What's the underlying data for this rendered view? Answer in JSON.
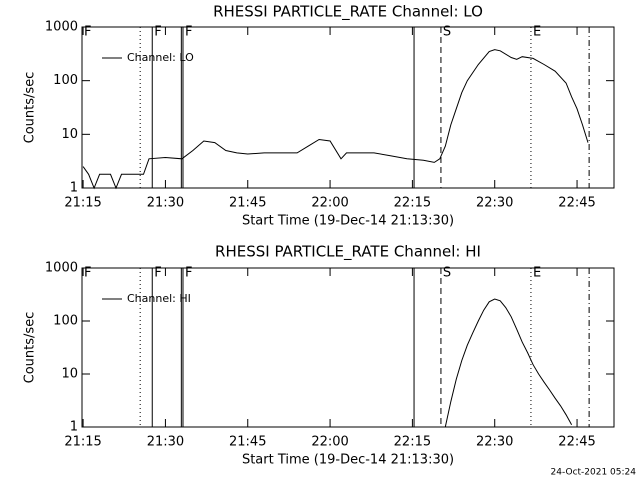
{
  "chart_data": [
    {
      "type": "line",
      "title": "RHESSI PARTICLE_RATE Channel: LO",
      "xlabel": "Start Time (19-Dec-14 21:13:30)",
      "ylabel": "Counts/sec",
      "x": [
        "21:15:00",
        "21:16:00",
        "21:17:00",
        "21:18:00",
        "21:20:00",
        "21:21:00",
        "21:22:00",
        "21:24:00",
        "21:26:00",
        "21:27:00",
        "21:30:00",
        "21:33:00",
        "21:35:00",
        "21:37:00",
        "21:39:00",
        "21:41:00",
        "21:43:00",
        "21:45:00",
        "21:48:00",
        "21:51:00",
        "21:54:00",
        "21:56:00",
        "21:58:00",
        "22:00:00",
        "22:02:00",
        "22:03:00",
        "22:05:00",
        "22:08:00",
        "22:11:00",
        "22:14:00",
        "22:17:00",
        "22:19:00",
        "22:20:00",
        "22:21:00",
        "22:22:00",
        "22:23:00",
        "22:24:00",
        "22:25:00",
        "22:27:00",
        "22:29:00",
        "22:30:00",
        "22:31:00",
        "22:33:00",
        "22:34:00",
        "22:35:00",
        "22:37:00",
        "22:39:00",
        "22:41:00",
        "22:43:00",
        "22:44:00",
        "22:45:00",
        "22:46:00",
        "22:47:00"
      ],
      "series": [
        {
          "name": "Channel: LO",
          "color": "#000000",
          "values": [
            2.5,
            1.8,
            1,
            1.8,
            1.8,
            1,
            1.8,
            1.8,
            1.8,
            3.5,
            3.7,
            3.5,
            5,
            7.5,
            7,
            5,
            4.5,
            4.3,
            4.5,
            4.5,
            4.5,
            6,
            8,
            7.5,
            3.5,
            4.5,
            4.5,
            4.5,
            4,
            3.5,
            3.3,
            3,
            3.5,
            6,
            15,
            30,
            60,
            100,
            200,
            350,
            380,
            360,
            270,
            250,
            280,
            260,
            200,
            150,
            90,
            50,
            30,
            15,
            7
          ]
        }
      ],
      "xlim": [
        "21:14:48",
        "22:51:44"
      ],
      "xticks": [
        "21:15",
        "21:30",
        "21:45",
        "22:00",
        "22:15",
        "22:30",
        "22:45"
      ],
      "ylim": [
        1,
        1000
      ],
      "yticks": [
        1,
        10,
        100,
        1000
      ],
      "log_y": true,
      "legend": "upper left",
      "flags": [
        {
          "x": "21:14:48",
          "style": "solid",
          "label": "F"
        },
        {
          "x": "21:25:24",
          "style": "dotted"
        },
        {
          "x": "21:27:36",
          "style": "solid",
          "label": "F"
        },
        {
          "x": "21:32:54",
          "style": "solid"
        },
        {
          "x": "21:33:12",
          "style": "solid",
          "label": "F"
        },
        {
          "x": "22:15:18",
          "style": "solid"
        },
        {
          "x": "22:20:12",
          "style": "dashed",
          "label": "S"
        },
        {
          "x": "22:36:36",
          "style": "dotted",
          "label": "E"
        },
        {
          "x": "22:47:12",
          "style": "dashdot"
        }
      ]
    },
    {
      "type": "line",
      "title": "RHESSI PARTICLE_RATE Channel: HI",
      "xlabel": "Start Time (19-Dec-14 21:13:30)",
      "ylabel": "Counts/sec",
      "x": [
        "22:21:00",
        "22:22:00",
        "22:23:00",
        "22:24:00",
        "22:25:00",
        "22:26:00",
        "22:27:00",
        "22:28:00",
        "22:29:00",
        "22:30:00",
        "22:31:00",
        "22:32:00",
        "22:33:00",
        "22:34:00",
        "22:35:00",
        "22:36:00",
        "22:37:00",
        "22:38:00",
        "22:39:00",
        "22:40:00",
        "22:41:00",
        "22:42:00",
        "22:43:00",
        "22:44:00"
      ],
      "series": [
        {
          "name": "Channel: HI",
          "color": "#000000",
          "values": [
            1,
            3,
            8,
            18,
            35,
            60,
            100,
            160,
            230,
            260,
            240,
            180,
            120,
            70,
            40,
            25,
            15,
            10,
            7,
            5,
            3.5,
            2.5,
            1.7,
            1.1
          ]
        }
      ],
      "xlim": [
        "21:14:48",
        "22:51:44"
      ],
      "xticks": [
        "21:15",
        "21:30",
        "21:45",
        "22:00",
        "22:15",
        "22:30",
        "22:45"
      ],
      "ylim": [
        1,
        1000
      ],
      "yticks": [
        1,
        10,
        100,
        1000
      ],
      "log_y": true,
      "legend": "upper left",
      "flags": [
        {
          "x": "21:14:48",
          "style": "solid",
          "label": "F"
        },
        {
          "x": "21:25:24",
          "style": "dotted"
        },
        {
          "x": "21:27:36",
          "style": "solid",
          "label": "F"
        },
        {
          "x": "21:32:54",
          "style": "solid"
        },
        {
          "x": "21:33:12",
          "style": "solid",
          "label": "F"
        },
        {
          "x": "22:15:18",
          "style": "solid"
        },
        {
          "x": "22:20:12",
          "style": "dashed",
          "label": "S"
        },
        {
          "x": "22:36:36",
          "style": "dotted",
          "label": "E"
        },
        {
          "x": "22:47:12",
          "style": "dashdot"
        }
      ]
    }
  ],
  "footer": "24-Oct-2021 05:24"
}
